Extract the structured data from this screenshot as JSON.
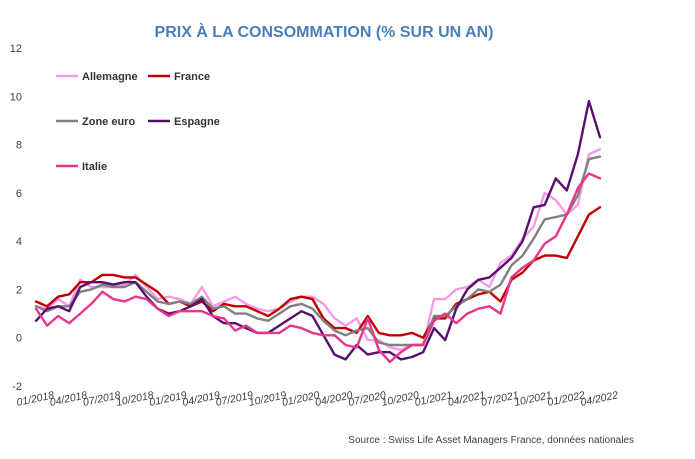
{
  "chart_data": {
    "type": "line",
    "title": "PRIX À LA CONSOMMATION (% SUR UN AN)",
    "source": "Source : Swiss Life Asset Managers France, données nationales",
    "ylim": [
      -2,
      12
    ],
    "yticks": [
      "-2",
      "0",
      "2",
      "4",
      "6",
      "8",
      "10",
      "12"
    ],
    "grid": false,
    "legend_position": "top-left",
    "x_tick_labels": [
      "01/2018",
      "04/2018",
      "07/2018",
      "10/2018",
      "01/2019",
      "04/2019",
      "07/2019",
      "10/2019",
      "01/2020",
      "04/2020",
      "07/2020",
      "10/2020",
      "01/2021",
      "04/2021",
      "07/2021",
      "10/2021",
      "01/2022",
      "04/2022"
    ],
    "x": [
      "01/2018",
      "02/2018",
      "03/2018",
      "04/2018",
      "05/2018",
      "06/2018",
      "07/2018",
      "08/2018",
      "09/2018",
      "10/2018",
      "11/2018",
      "12/2018",
      "01/2019",
      "02/2019",
      "03/2019",
      "04/2019",
      "05/2019",
      "06/2019",
      "07/2019",
      "08/2019",
      "09/2019",
      "10/2019",
      "11/2019",
      "12/2019",
      "01/2020",
      "02/2020",
      "03/2020",
      "04/2020",
      "05/2020",
      "06/2020",
      "07/2020",
      "08/2020",
      "09/2020",
      "10/2020",
      "11/2020",
      "12/2020",
      "01/2021",
      "02/2021",
      "03/2021",
      "04/2021",
      "05/2021",
      "06/2021",
      "07/2021",
      "08/2021",
      "09/2021",
      "10/2021",
      "11/2021",
      "12/2021",
      "01/2022",
      "02/2022",
      "03/2022",
      "04/2022"
    ],
    "series": [
      {
        "name": "Allemagne",
        "color": "#f49ae8",
        "values": [
          1.3,
          1.2,
          1.6,
          1.3,
          2.4,
          2.1,
          2.1,
          2.1,
          2.2,
          2.6,
          2.1,
          1.6,
          1.7,
          1.6,
          1.4,
          2.1,
          1.3,
          1.5,
          1.7,
          1.4,
          1.2,
          1.1,
          1.2,
          1.5,
          1.7,
          1.7,
          1.4,
          0.8,
          0.5,
          0.8,
          -0.1,
          -0.1,
          -0.4,
          -0.5,
          -0.3,
          -0.3,
          1.6,
          1.6,
          2.0,
          2.1,
          2.4,
          2.1,
          3.1,
          3.4,
          4.1,
          4.6,
          6.0,
          5.7,
          5.1,
          5.5,
          7.6,
          7.8
        ]
      },
      {
        "name": "France",
        "color": "#c00000",
        "values": [
          1.5,
          1.3,
          1.7,
          1.8,
          2.3,
          2.3,
          2.6,
          2.6,
          2.5,
          2.5,
          2.2,
          1.9,
          1.4,
          1.5,
          1.3,
          1.5,
          1.1,
          1.4,
          1.3,
          1.3,
          1.1,
          0.9,
          1.2,
          1.6,
          1.7,
          1.6,
          0.8,
          0.4,
          0.4,
          0.2,
          0.9,
          0.2,
          0.1,
          0.1,
          0.2,
          0.0,
          0.8,
          0.8,
          1.4,
          1.6,
          1.8,
          1.9,
          1.5,
          2.4,
          2.7,
          3.2,
          3.4,
          3.4,
          3.3,
          4.2,
          5.1,
          5.4
        ]
      },
      {
        "name": "Zone euro",
        "color": "#808080",
        "values": [
          1.3,
          1.1,
          1.3,
          1.3,
          1.9,
          2.0,
          2.2,
          2.1,
          2.1,
          2.3,
          1.9,
          1.5,
          1.4,
          1.5,
          1.4,
          1.7,
          1.2,
          1.3,
          1.0,
          1.0,
          0.8,
          0.7,
          1.0,
          1.3,
          1.4,
          1.2,
          0.7,
          0.3,
          0.1,
          0.3,
          0.4,
          -0.2,
          -0.3,
          -0.3,
          -0.3,
          -0.3,
          0.9,
          0.9,
          1.3,
          1.6,
          2.0,
          1.9,
          2.2,
          3.0,
          3.4,
          4.1,
          4.9,
          5.0,
          5.1,
          5.9,
          7.4,
          7.5
        ]
      },
      {
        "name": "Espagne",
        "color": "#5a0f6e",
        "values": [
          0.7,
          1.2,
          1.3,
          1.1,
          2.1,
          2.3,
          2.3,
          2.2,
          2.3,
          2.3,
          1.7,
          1.2,
          1.0,
          1.1,
          1.3,
          1.6,
          0.9,
          0.6,
          0.6,
          0.4,
          0.2,
          0.2,
          0.5,
          0.8,
          1.1,
          0.9,
          0.1,
          -0.7,
          -0.9,
          -0.3,
          -0.7,
          -0.6,
          -0.6,
          -0.9,
          -0.8,
          -0.6,
          0.4,
          -0.1,
          1.2,
          2.0,
          2.4,
          2.5,
          2.9,
          3.3,
          4.0,
          5.4,
          5.5,
          6.6,
          6.1,
          7.6,
          9.8,
          8.3
        ]
      },
      {
        "name": "Italie",
        "color": "#e8368a",
        "values": [
          1.2,
          0.5,
          0.9,
          0.6,
          1.0,
          1.4,
          1.9,
          1.6,
          1.5,
          1.7,
          1.6,
          1.2,
          0.9,
          1.1,
          1.1,
          1.1,
          0.9,
          0.8,
          0.3,
          0.5,
          0.2,
          0.2,
          0.2,
          0.5,
          0.4,
          0.2,
          0.1,
          0.1,
          -0.3,
          -0.4,
          0.8,
          -0.5,
          -1.0,
          -0.6,
          -0.3,
          -0.3,
          0.7,
          1.0,
          0.6,
          1.0,
          1.2,
          1.3,
          1.0,
          2.5,
          2.9,
          3.2,
          3.9,
          4.2,
          5.1,
          6.2,
          6.8,
          6.6
        ]
      }
    ]
  }
}
